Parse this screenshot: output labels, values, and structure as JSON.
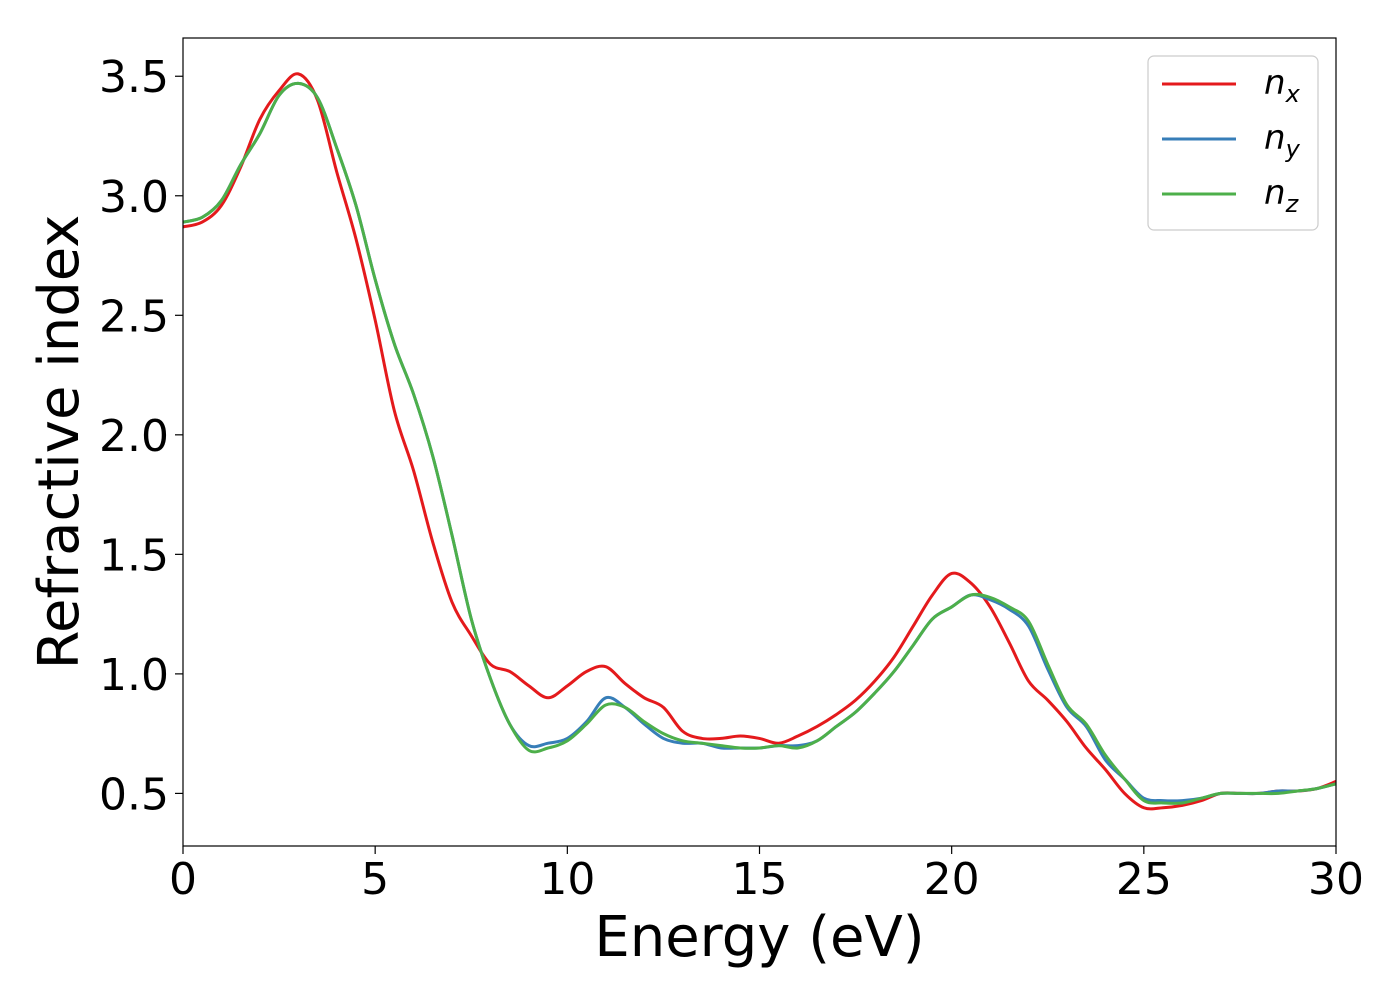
{
  "chart_data": {
    "type": "line",
    "title": "",
    "xlabel": "Energy (eV)",
    "ylabel": "Refractive index",
    "xlim": [
      0,
      30
    ],
    "ylim": [
      0.28,
      3.66
    ],
    "xticks": [
      0,
      5,
      10,
      15,
      20,
      25,
      30
    ],
    "xtick_labels": [
      "0",
      "5",
      "10",
      "15",
      "20",
      "25",
      "30"
    ],
    "yticks": [
      0.5,
      1.0,
      1.5,
      2.0,
      2.5,
      3.0,
      3.5
    ],
    "ytick_labels": [
      "0.5",
      "1.0",
      "1.5",
      "2.0",
      "2.5",
      "3.0",
      "3.5"
    ],
    "grid": false,
    "legend_position": "top-right",
    "series": [
      {
        "name": "n_x",
        "legend_base": "n",
        "legend_sub": "x",
        "color": "#e41a1c",
        "x": [
          0,
          0.5,
          1,
          1.5,
          2,
          2.5,
          3,
          3.5,
          4,
          4.5,
          5,
          5.5,
          6,
          6.5,
          7,
          7.5,
          8,
          8.5,
          9,
          9.5,
          10,
          10.5,
          11,
          11.5,
          12,
          12.5,
          13,
          13.5,
          14,
          14.5,
          15,
          15.5,
          16,
          16.5,
          17,
          17.5,
          18,
          18.5,
          19,
          19.5,
          20,
          20.5,
          21,
          21.5,
          22,
          22.5,
          23,
          23.5,
          24,
          24.5,
          25,
          25.5,
          26,
          26.5,
          27,
          27.5,
          28,
          28.5,
          29,
          29.5,
          30
        ],
        "y": [
          2.87,
          2.89,
          2.96,
          3.12,
          3.32,
          3.44,
          3.51,
          3.4,
          3.1,
          2.82,
          2.48,
          2.1,
          1.85,
          1.55,
          1.3,
          1.16,
          1.04,
          1.01,
          0.95,
          0.9,
          0.95,
          1.01,
          1.03,
          0.96,
          0.9,
          0.86,
          0.76,
          0.73,
          0.73,
          0.74,
          0.73,
          0.71,
          0.74,
          0.78,
          0.83,
          0.89,
          0.97,
          1.07,
          1.2,
          1.33,
          1.42,
          1.38,
          1.28,
          1.13,
          0.97,
          0.89,
          0.8,
          0.69,
          0.6,
          0.5,
          0.44,
          0.44,
          0.45,
          0.47,
          0.5,
          0.5,
          0.5,
          0.51,
          0.51,
          0.52,
          0.55
        ]
      },
      {
        "name": "n_y",
        "legend_base": "n",
        "legend_sub": "y",
        "color": "#377eb8",
        "x": [
          0,
          0.5,
          1,
          1.5,
          2,
          2.5,
          3,
          3.5,
          4,
          4.5,
          5,
          5.5,
          6,
          6.5,
          7,
          7.5,
          8,
          8.5,
          9,
          9.5,
          10,
          10.5,
          11,
          11.5,
          12,
          12.5,
          13,
          13.5,
          14,
          14.5,
          15,
          15.5,
          16,
          16.5,
          17,
          17.5,
          18,
          18.5,
          19,
          19.5,
          20,
          20.5,
          21,
          21.5,
          22,
          22.5,
          23,
          23.5,
          24,
          24.5,
          25,
          25.5,
          26,
          26.5,
          27,
          27.5,
          28,
          28.5,
          29,
          29.5,
          30
        ],
        "y": [
          2.89,
          2.91,
          2.98,
          3.13,
          3.26,
          3.42,
          3.47,
          3.41,
          3.2,
          2.96,
          2.65,
          2.38,
          2.17,
          1.91,
          1.58,
          1.23,
          0.98,
          0.79,
          0.7,
          0.71,
          0.73,
          0.8,
          0.9,
          0.86,
          0.79,
          0.73,
          0.71,
          0.71,
          0.69,
          0.69,
          0.69,
          0.7,
          0.7,
          0.72,
          0.78,
          0.84,
          0.92,
          1.01,
          1.12,
          1.23,
          1.28,
          1.33,
          1.31,
          1.27,
          1.2,
          1.02,
          0.86,
          0.78,
          0.64,
          0.56,
          0.48,
          0.47,
          0.47,
          0.48,
          0.5,
          0.5,
          0.5,
          0.51,
          0.51,
          0.52,
          0.54
        ]
      },
      {
        "name": "n_z",
        "legend_base": "n",
        "legend_sub": "z",
        "color": "#4daf4a",
        "x": [
          0,
          0.5,
          1,
          1.5,
          2,
          2.5,
          3,
          3.5,
          4,
          4.5,
          5,
          5.5,
          6,
          6.5,
          7,
          7.5,
          8,
          8.5,
          9,
          9.5,
          10,
          10.5,
          11,
          11.5,
          12,
          12.5,
          13,
          13.5,
          14,
          14.5,
          15,
          15.5,
          16,
          16.5,
          17,
          17.5,
          18,
          18.5,
          19,
          19.5,
          20,
          20.5,
          21,
          21.5,
          22,
          22.5,
          23,
          23.5,
          24,
          24.5,
          25,
          25.5,
          26,
          26.5,
          27,
          27.5,
          28,
          28.5,
          29,
          29.5,
          30
        ],
        "y": [
          2.89,
          2.91,
          2.98,
          3.13,
          3.26,
          3.42,
          3.47,
          3.41,
          3.2,
          2.96,
          2.65,
          2.38,
          2.17,
          1.91,
          1.58,
          1.23,
          0.98,
          0.79,
          0.68,
          0.69,
          0.72,
          0.79,
          0.87,
          0.86,
          0.8,
          0.75,
          0.72,
          0.71,
          0.7,
          0.69,
          0.69,
          0.7,
          0.69,
          0.72,
          0.78,
          0.84,
          0.92,
          1.01,
          1.12,
          1.23,
          1.28,
          1.33,
          1.32,
          1.28,
          1.22,
          1.04,
          0.87,
          0.79,
          0.66,
          0.56,
          0.47,
          0.46,
          0.46,
          0.48,
          0.5,
          0.5,
          0.5,
          0.5,
          0.51,
          0.52,
          0.54
        ]
      }
    ]
  }
}
